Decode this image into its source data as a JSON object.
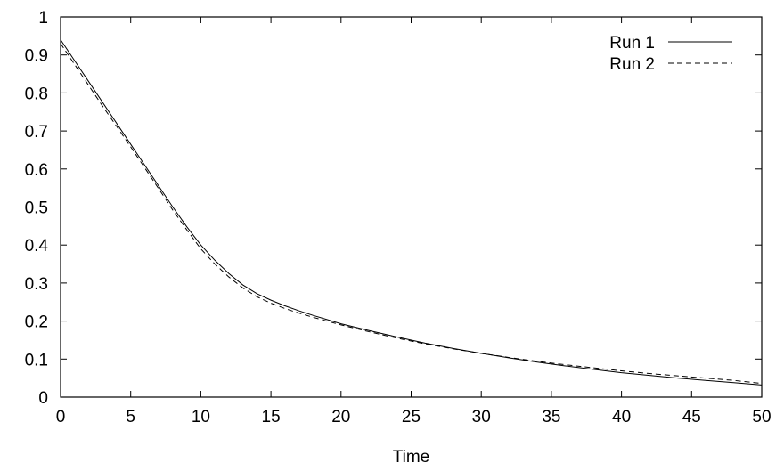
{
  "chart_data": {
    "type": "line",
    "title": "",
    "xlabel": "Time",
    "ylabel": "",
    "xlim": [
      0,
      50
    ],
    "ylim": [
      0,
      1
    ],
    "x_ticks": [
      0,
      5,
      10,
      15,
      20,
      25,
      30,
      35,
      40,
      45,
      50
    ],
    "y_ticks": [
      0,
      0.1,
      0.2,
      0.3,
      0.4,
      0.5,
      0.6,
      0.7,
      0.8,
      0.9,
      1
    ],
    "x_tick_labels": [
      "0",
      "5",
      "10",
      "15",
      "20",
      "25",
      "30",
      "35",
      "40",
      "45",
      "50"
    ],
    "y_tick_labels": [
      "0",
      "0.1",
      "0.2",
      "0.3",
      "0.4",
      "0.5",
      "0.6",
      "0.7",
      "0.8",
      "0.9",
      "1"
    ],
    "grid": false,
    "legend_position": "top-right",
    "series": [
      {
        "name": "Run 1",
        "style": "solid",
        "color": "#000000",
        "x": [
          0,
          1,
          2,
          3,
          4,
          5,
          6,
          7,
          8,
          9,
          10,
          11,
          12,
          13,
          14,
          15,
          16,
          17,
          18,
          19,
          20,
          22,
          24,
          26,
          28,
          30,
          32,
          34,
          36,
          38,
          40,
          42,
          44,
          46,
          48,
          50
        ],
        "y": [
          0.94,
          0.885,
          0.83,
          0.775,
          0.72,
          0.665,
          0.61,
          0.555,
          0.5,
          0.448,
          0.4,
          0.36,
          0.325,
          0.295,
          0.272,
          0.255,
          0.24,
          0.227,
          0.215,
          0.204,
          0.193,
          0.175,
          0.158,
          0.142,
          0.128,
          0.115,
          0.103,
          0.092,
          0.082,
          0.073,
          0.064,
          0.057,
          0.05,
          0.044,
          0.038,
          0.032
        ]
      },
      {
        "name": "Run 2",
        "style": "dashed",
        "color": "#000000",
        "x": [
          0,
          1,
          2,
          3,
          4,
          5,
          6,
          7,
          8,
          9,
          10,
          11,
          12,
          13,
          14,
          15,
          16,
          17,
          18,
          19,
          20,
          22,
          24,
          26,
          28,
          30,
          32,
          34,
          36,
          38,
          40,
          42,
          44,
          46,
          48,
          50
        ],
        "y": [
          0.93,
          0.875,
          0.82,
          0.765,
          0.712,
          0.658,
          0.603,
          0.548,
          0.492,
          0.44,
          0.39,
          0.35,
          0.316,
          0.287,
          0.264,
          0.247,
          0.233,
          0.221,
          0.21,
          0.2,
          0.19,
          0.172,
          0.155,
          0.14,
          0.127,
          0.115,
          0.104,
          0.094,
          0.085,
          0.077,
          0.069,
          0.062,
          0.056,
          0.05,
          0.044,
          0.036
        ]
      }
    ]
  }
}
